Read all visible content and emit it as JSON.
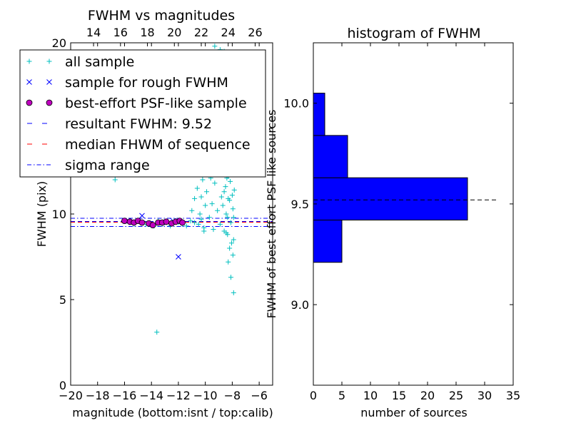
{
  "chart_data": [
    {
      "type": "scatter",
      "title": "FWHM vs magnitudes",
      "xlabel": "magnitude (bottom:isnt / top:calib)",
      "ylabel": "FWHM (pix)",
      "xlim": [
        -20,
        -5
      ],
      "ylim": [
        0,
        20
      ],
      "xticks": [
        -20,
        -18,
        -16,
        -14,
        -12,
        -10,
        -8,
        -6
      ],
      "yticks": [
        0,
        5,
        10,
        15,
        20
      ],
      "top_xticks": [
        14,
        16,
        18,
        20,
        22,
        24,
        26
      ],
      "top_xlim": [
        12.3,
        27.3
      ],
      "legend": {
        "position": "top-left",
        "entries": [
          {
            "label": "all sample",
            "marker": "+",
            "color": "#00bfbf"
          },
          {
            "label": "sample for rough FWHM",
            "marker": "x",
            "color": "#0000ff"
          },
          {
            "label": "best-effort PSF-like sample",
            "marker": "o",
            "color": "#bf00bf"
          },
          {
            "label": "resultant FWHM: 9.52",
            "line": "dashed",
            "color": "#0000ff"
          },
          {
            "label": "median FHWM of sequence",
            "line": "dashed",
            "color": "#ff0000"
          },
          {
            "label": "sigma range",
            "line": "dashdot",
            "color": "#0000ff"
          }
        ]
      },
      "series": [
        {
          "name": "all sample",
          "marker": "+",
          "color": "#00bfbf",
          "points": [
            [
              -15.9,
              9.6
            ],
            [
              -15.6,
              9.5
            ],
            [
              -15.3,
              9.4
            ],
            [
              -15.0,
              9.6
            ],
            [
              -14.7,
              9.5
            ],
            [
              -14.4,
              9.4
            ],
            [
              -14.1,
              9.5
            ],
            [
              -13.8,
              9.3
            ],
            [
              -13.5,
              9.6
            ],
            [
              -13.2,
              9.4
            ],
            [
              -12.9,
              9.5
            ],
            [
              -12.6,
              9.3
            ],
            [
              -12.3,
              9.6
            ],
            [
              -12.0,
              9.5
            ],
            [
              -11.7,
              9.4
            ],
            [
              -11.4,
              9.3
            ],
            [
              -11.1,
              9.6
            ],
            [
              -10.8,
              9.5
            ],
            [
              -10.5,
              9.4
            ],
            [
              -10.3,
              9.7
            ],
            [
              -10.1,
              9.2
            ],
            [
              -16.7,
              12.0
            ],
            [
              -13.6,
              3.1
            ],
            [
              -11.0,
              10.2
            ],
            [
              -10.8,
              10.9
            ],
            [
              -10.6,
              11.5
            ],
            [
              -10.5,
              12.6
            ],
            [
              -10.4,
              10.0
            ],
            [
              -10.3,
              11.0
            ],
            [
              -10.2,
              12.0
            ],
            [
              -10.1,
              9.0
            ],
            [
              -10.0,
              10.5
            ],
            [
              -9.9,
              11.3
            ],
            [
              -9.8,
              13.1
            ],
            [
              -9.7,
              9.8
            ],
            [
              -9.6,
              12.1
            ],
            [
              -9.5,
              10.6
            ],
            [
              -9.4,
              9.1
            ],
            [
              -9.3,
              11.8
            ],
            [
              -9.2,
              14.0
            ],
            [
              -9.1,
              10.2
            ],
            [
              -9.0,
              12.8
            ],
            [
              -8.9,
              9.4
            ],
            [
              -8.8,
              11.0
            ],
            [
              -8.75,
              13.5
            ],
            [
              -8.7,
              10.5
            ],
            [
              -8.65,
              12.4
            ],
            [
              -8.6,
              9.0
            ],
            [
              -8.55,
              14.4
            ],
            [
              -8.5,
              11.6
            ],
            [
              -8.45,
              10.0
            ],
            [
              -8.4,
              13.0
            ],
            [
              -8.35,
              8.8
            ],
            [
              -8.3,
              12.2
            ],
            [
              -8.25,
              15.0
            ],
            [
              -8.2,
              10.8
            ],
            [
              -8.15,
              11.9
            ],
            [
              -8.1,
              9.5
            ],
            [
              -8.05,
              13.7
            ],
            [
              -8.0,
              12.6
            ],
            [
              -7.95,
              10.3
            ],
            [
              -7.9,
              8.5
            ],
            [
              -7.85,
              11.4
            ],
            [
              -7.8,
              13.3
            ],
            [
              -8.7,
              12.9
            ],
            [
              -8.6,
              11.3
            ],
            [
              -8.5,
              13.9
            ],
            [
              -8.4,
              12.1
            ],
            [
              -8.3,
              10.9
            ],
            [
              -8.2,
              14.6
            ],
            [
              -8.1,
              12.3
            ],
            [
              -8.0,
              11.1
            ],
            [
              -7.9,
              9.8
            ],
            [
              -8.35,
              9.8
            ],
            [
              -8.45,
              8.9
            ],
            [
              -8.05,
              8.3
            ],
            [
              -8.2,
              8.0
            ],
            [
              -7.95,
              7.6
            ],
            [
              -8.3,
              7.2
            ],
            [
              -8.1,
              6.3
            ],
            [
              -7.9,
              5.4
            ],
            [
              -9.3,
              19.8
            ],
            [
              -8.9,
              19.6
            ],
            [
              -8.6,
              19.5
            ],
            [
              -8.8,
              18.9
            ],
            [
              -8.4,
              18.5
            ],
            [
              -8.2,
              17.8
            ],
            [
              -8.0,
              17.0
            ],
            [
              -8.5,
              16.3
            ],
            [
              -8.7,
              15.5
            ],
            [
              -8.3,
              16.8
            ],
            [
              -7.9,
              15.8
            ],
            [
              -8.1,
              14.9
            ],
            [
              -8.6,
              17.4
            ]
          ]
        },
        {
          "name": "sample for rough FWHM",
          "marker": "x",
          "color": "#0000ff",
          "points": [
            [
              -14.7,
              9.9
            ],
            [
              -12.0,
              7.5
            ],
            [
              -15.7,
              9.6
            ],
            [
              -13.2,
              9.5
            ],
            [
              -12.4,
              9.6
            ]
          ]
        },
        {
          "name": "best-effort PSF-like sample",
          "marker": "o",
          "color": "#bf00bf",
          "points": [
            [
              -16.0,
              9.6
            ],
            [
              -15.6,
              9.55
            ],
            [
              -15.3,
              9.5
            ],
            [
              -15.0,
              9.6
            ],
            [
              -14.7,
              9.5
            ],
            [
              -14.2,
              9.45
            ],
            [
              -13.9,
              9.35
            ],
            [
              -13.5,
              9.5
            ],
            [
              -13.2,
              9.5
            ],
            [
              -12.9,
              9.55
            ],
            [
              -12.5,
              9.45
            ],
            [
              -12.2,
              9.55
            ],
            [
              -11.9,
              9.6
            ],
            [
              -11.7,
              9.5
            ]
          ]
        }
      ],
      "hlines": [
        {
          "name": "resultant FWHM: 9.52",
          "y": 9.52,
          "style": "dashed",
          "color": "#0000ff"
        },
        {
          "name": "median FHWM of sequence",
          "y": 9.52,
          "style": "dashed",
          "color": "#ff0000"
        },
        {
          "name": "sigma range",
          "y": 9.75,
          "style": "dashdot",
          "color": "#0000ff"
        },
        {
          "name": "sigma range",
          "y": 9.27,
          "style": "dashdot",
          "color": "#0000ff"
        }
      ]
    },
    {
      "type": "bar",
      "orientation": "horizontal",
      "title": "histogram of FWHM",
      "xlabel": "number of sources",
      "ylabel": "FWHM of best effort PSF like sources",
      "xlim": [
        0,
        35
      ],
      "ylim": [
        8.6,
        10.3
      ],
      "xticks": [
        0,
        5,
        10,
        15,
        20,
        25,
        30,
        35
      ],
      "yticks": [
        9.0,
        9.5,
        10.0
      ],
      "yticklabels": [
        "9.0",
        "9.5",
        "10.0"
      ],
      "color": "#0000ff",
      "bins": [
        {
          "y0": 9.21,
          "y1": 9.42,
          "count": 5
        },
        {
          "y0": 9.42,
          "y1": 9.63,
          "count": 27
        },
        {
          "y0": 9.63,
          "y1": 9.84,
          "count": 6
        },
        {
          "y0": 9.84,
          "y1": 10.05,
          "count": 2
        }
      ],
      "dashed_line": {
        "y": 9.52,
        "x0": 0,
        "x1": 32,
        "color": "#000000"
      }
    }
  ]
}
